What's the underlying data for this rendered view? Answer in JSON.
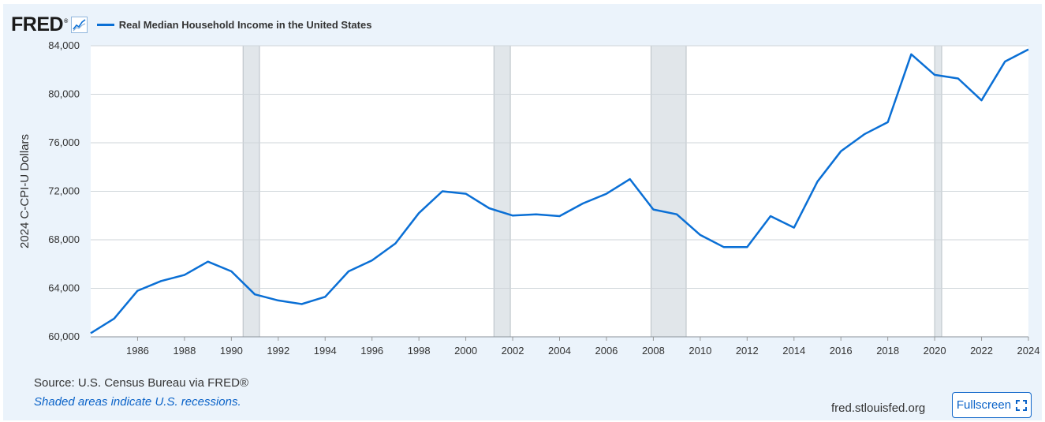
{
  "header": {
    "logo_text": "FRED",
    "logo_reg": "®",
    "graph_icon": "line-chart-icon"
  },
  "chart_data": {
    "type": "line",
    "title": "",
    "xlabel": "",
    "ylabel": "2024 C-CPI-U Dollars",
    "xlim": [
      1984,
      2024
    ],
    "ylim": [
      60000,
      84000
    ],
    "yticks": [
      60000,
      64000,
      68000,
      72000,
      76000,
      80000,
      84000
    ],
    "ytick_labels": [
      "60,000",
      "64,000",
      "68,000",
      "72,000",
      "76,000",
      "80,000",
      "84,000"
    ],
    "xticks": [
      1986,
      1988,
      1990,
      1992,
      1994,
      1996,
      1998,
      2000,
      2002,
      2004,
      2006,
      2008,
      2010,
      2012,
      2014,
      2016,
      2018,
      2020,
      2022,
      2024
    ],
    "xtick_labels": [
      "1986",
      "1988",
      "1990",
      "1992",
      "1994",
      "1996",
      "1998",
      "2000",
      "2002",
      "2004",
      "2006",
      "2008",
      "2010",
      "2012",
      "2014",
      "2016",
      "2018",
      "2020",
      "2022",
      "2024"
    ],
    "grid": true,
    "legend_position": "top-left",
    "recessions": [
      [
        1990.5,
        1991.2
      ],
      [
        2001.2,
        2001.9
      ],
      [
        2007.9,
        2009.4
      ],
      [
        2020.0,
        2020.3
      ]
    ],
    "series": [
      {
        "name": "Real Median Household Income in the United States",
        "color": "#0a6fd5",
        "x": [
          1984,
          1985,
          1986,
          1987,
          1988,
          1989,
          1990,
          1991,
          1992,
          1993,
          1994,
          1995,
          1996,
          1997,
          1998,
          1999,
          2000,
          2001,
          2002,
          2003,
          2004,
          2005,
          2006,
          2007,
          2008,
          2009,
          2010,
          2011,
          2012,
          2013,
          2014,
          2015,
          2016,
          2017,
          2018,
          2019,
          2020,
          2021,
          2022,
          2023,
          2024
        ],
        "y": [
          60300,
          61500,
          63800,
          64600,
          65100,
          66200,
          65400,
          63500,
          63000,
          62700,
          63300,
          65400,
          66300,
          67700,
          70200,
          72000,
          71800,
          70600,
          70000,
          70100,
          69950,
          71000,
          71800,
          73000,
          70500,
          70100,
          68400,
          67400,
          67400,
          69950,
          69000,
          72800,
          75300,
          76700,
          77700,
          83300,
          81600,
          81300,
          79500,
          82700,
          83700
        ]
      }
    ]
  },
  "footer": {
    "source": "Source: U.S. Census Bureau via FRED®",
    "note": "Shaded areas indicate U.S. recessions.",
    "site": "fred.stlouisfed.org",
    "fullscreen_label": "Fullscreen",
    "fullscreen_icon": "expand-icon"
  },
  "colors": {
    "line": "#0a6fd5",
    "recession": "#e1e6ea",
    "grid": "#cfd5da",
    "background": "#ebf3fb"
  }
}
